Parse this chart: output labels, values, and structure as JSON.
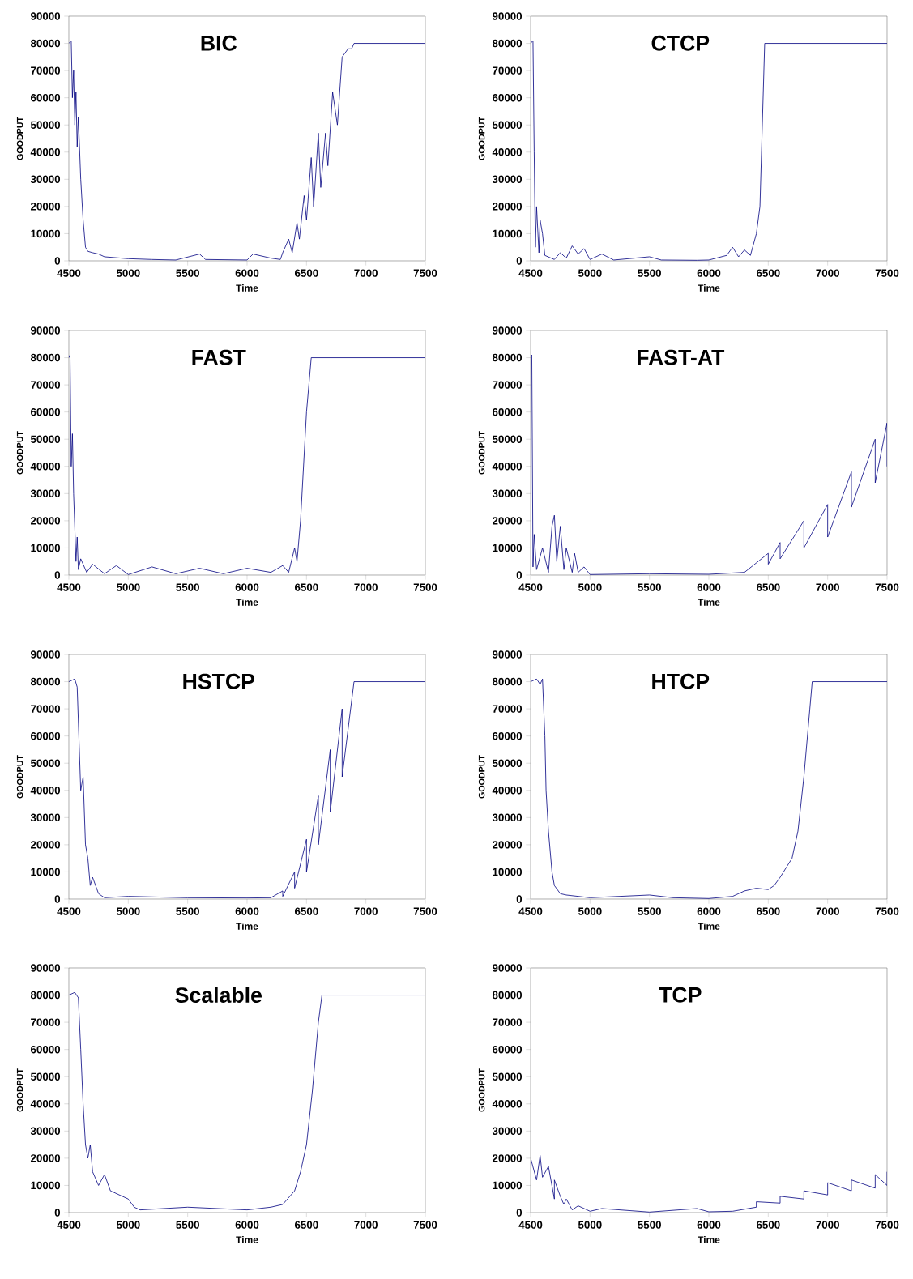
{
  "chart_data": [
    {
      "type": "line",
      "title": "BIC",
      "xlabel": "Time",
      "ylabel": "GOODPUT",
      "xlim": [
        4500,
        7500
      ],
      "ylim": [
        0,
        90000
      ],
      "xticks": [
        4500,
        5000,
        5500,
        6000,
        6500,
        7000,
        7500
      ],
      "yticks": [
        0,
        10000,
        20000,
        30000,
        40000,
        50000,
        60000,
        70000,
        80000,
        90000
      ],
      "series": [
        {
          "color": "#000080",
          "x": [
            4500,
            4520,
            4530,
            4540,
            4550,
            4560,
            4570,
            4580,
            4600,
            4620,
            4640,
            4660,
            4700,
            4750,
            4800,
            5000,
            5200,
            5400,
            5600,
            5650,
            6000,
            6050,
            6200,
            6280,
            6300,
            6350,
            6380,
            6420,
            6440,
            6480,
            6500,
            6540,
            6560,
            6600,
            6620,
            6660,
            6680,
            6720,
            6760,
            6800,
            6850,
            6880,
            6900,
            7500
          ],
          "values": [
            80000,
            81000,
            60000,
            70000,
            50000,
            62000,
            42000,
            53000,
            30000,
            15000,
            5000,
            3500,
            3000,
            2500,
            1500,
            800,
            500,
            300,
            2500,
            500,
            300,
            2500,
            1000,
            500,
            3000,
            8000,
            3000,
            14000,
            8000,
            24000,
            15000,
            38000,
            20000,
            47000,
            27000,
            47000,
            35000,
            62000,
            50000,
            75000,
            78000,
            78000,
            80000,
            80000
          ]
        }
      ]
    },
    {
      "type": "line",
      "title": "CTCP",
      "xlabel": "Time",
      "ylabel": "GOODPUT",
      "xlim": [
        4500,
        7500
      ],
      "ylim": [
        0,
        90000
      ],
      "xticks": [
        4500,
        5000,
        5500,
        6000,
        6500,
        7000,
        7500
      ],
      "yticks": [
        0,
        10000,
        20000,
        30000,
        40000,
        50000,
        60000,
        70000,
        80000,
        90000
      ],
      "series": [
        {
          "color": "#000080",
          "x": [
            4500,
            4520,
            4530,
            4540,
            4550,
            4570,
            4580,
            4600,
            4620,
            4700,
            4750,
            4800,
            4850,
            4900,
            4950,
            5000,
            5100,
            5200,
            5500,
            5600,
            5900,
            6000,
            6150,
            6200,
            6250,
            6300,
            6350,
            6400,
            6430,
            6470,
            7500
          ],
          "values": [
            80000,
            81000,
            40000,
            5000,
            20000,
            3000,
            15000,
            10000,
            2000,
            500,
            3000,
            1000,
            5500,
            2500,
            4500,
            500,
            2500,
            300,
            1500,
            300,
            200,
            300,
            2000,
            5000,
            1500,
            4000,
            2000,
            10000,
            20000,
            80000,
            80000
          ]
        }
      ]
    },
    {
      "type": "line",
      "title": "FAST",
      "xlabel": "Time",
      "ylabel": "GOODPUT",
      "xlim": [
        4500,
        7500
      ],
      "ylim": [
        0,
        90000
      ],
      "xticks": [
        4500,
        5000,
        5500,
        6000,
        6500,
        7000,
        7500
      ],
      "yticks": [
        0,
        10000,
        20000,
        30000,
        40000,
        50000,
        60000,
        70000,
        80000,
        90000
      ],
      "series": [
        {
          "color": "#000080",
          "x": [
            4500,
            4510,
            4520,
            4530,
            4540,
            4560,
            4570,
            4580,
            4600,
            4650,
            4700,
            4800,
            4900,
            5000,
            5200,
            5400,
            5600,
            5800,
            6000,
            6200,
            6300,
            6350,
            6400,
            6420,
            6450,
            6500,
            6540,
            7500
          ],
          "values": [
            80000,
            81000,
            40000,
            52000,
            30000,
            5000,
            14000,
            2000,
            6000,
            1000,
            4000,
            500,
            3500,
            200,
            3000,
            500,
            2500,
            500,
            2500,
            1000,
            3500,
            1000,
            10000,
            5000,
            20000,
            60000,
            80000,
            80000
          ]
        }
      ]
    },
    {
      "type": "line",
      "title": "FAST-AT",
      "xlabel": "Time",
      "ylabel": "GOODPUT",
      "xlim": [
        4500,
        7500
      ],
      "ylim": [
        0,
        90000
      ],
      "xticks": [
        4500,
        5000,
        5500,
        6000,
        6500,
        7000,
        7500
      ],
      "yticks": [
        0,
        10000,
        20000,
        30000,
        40000,
        50000,
        60000,
        70000,
        80000,
        90000
      ],
      "series": [
        {
          "color": "#000080",
          "x": [
            4500,
            4510,
            4520,
            4530,
            4550,
            4600,
            4650,
            4680,
            4700,
            4720,
            4750,
            4780,
            4800,
            4850,
            4870,
            4900,
            4950,
            5000,
            5500,
            6000,
            6300,
            6500,
            6500,
            6600,
            6600,
            6800,
            6800,
            7000,
            7000,
            7200,
            7200,
            7400,
            7400,
            7500,
            7500
          ],
          "values": [
            80000,
            81000,
            3000,
            15000,
            2000,
            10000,
            1000,
            18000,
            22000,
            5000,
            18000,
            2000,
            10000,
            1000,
            8000,
            1000,
            3000,
            200,
            500,
            300,
            1000,
            8000,
            4000,
            12000,
            6000,
            20000,
            10000,
            26000,
            14000,
            38000,
            25000,
            50000,
            34000,
            56000,
            40000
          ]
        }
      ]
    },
    {
      "type": "line",
      "title": "HSTCP",
      "xlabel": "Time",
      "ylabel": "GOODPUT",
      "xlim": [
        4500,
        7500
      ],
      "ylim": [
        0,
        90000
      ],
      "xticks": [
        4500,
        5000,
        5500,
        6000,
        6500,
        7000,
        7500
      ],
      "yticks": [
        0,
        10000,
        20000,
        30000,
        40000,
        50000,
        60000,
        70000,
        80000,
        90000
      ],
      "series": [
        {
          "color": "#000080",
          "x": [
            4500,
            4550,
            4570,
            4600,
            4620,
            4640,
            4660,
            4680,
            4700,
            4750,
            4800,
            5000,
            5500,
            6000,
            6200,
            6300,
            6300,
            6400,
            6400,
            6500,
            6500,
            6600,
            6600,
            6700,
            6700,
            6800,
            6800,
            6900,
            7500
          ],
          "values": [
            80000,
            81000,
            78000,
            40000,
            45000,
            20000,
            15000,
            5000,
            8000,
            2000,
            500,
            1000,
            500,
            400,
            500,
            3000,
            1000,
            10000,
            4000,
            22000,
            10000,
            38000,
            20000,
            55000,
            32000,
            70000,
            45000,
            80000,
            80000
          ]
        }
      ]
    },
    {
      "type": "line",
      "title": "HTCP",
      "xlabel": "Time",
      "ylabel": "GOODPUT",
      "xlim": [
        4500,
        7500
      ],
      "ylim": [
        0,
        90000
      ],
      "xticks": [
        4500,
        5000,
        5500,
        6000,
        6500,
        7000,
        7500
      ],
      "yticks": [
        0,
        10000,
        20000,
        30000,
        40000,
        50000,
        60000,
        70000,
        80000,
        90000
      ],
      "series": [
        {
          "color": "#000080",
          "x": [
            4500,
            4550,
            4580,
            4600,
            4620,
            4630,
            4650,
            4680,
            4700,
            4750,
            4800,
            5000,
            5500,
            5700,
            6000,
            6200,
            6300,
            6400,
            6500,
            6550,
            6600,
            6700,
            6750,
            6800,
            6850,
            6870,
            7500
          ],
          "values": [
            80000,
            81000,
            79000,
            81000,
            60000,
            40000,
            25000,
            10000,
            5000,
            2000,
            1500,
            500,
            1500,
            500,
            200,
            1000,
            3000,
            4000,
            3500,
            5000,
            8000,
            15000,
            25000,
            45000,
            70000,
            80000,
            80000
          ]
        }
      ]
    },
    {
      "type": "line",
      "title": "Scalable",
      "xlabel": "Time",
      "ylabel": "GOODPUT",
      "xlim": [
        4500,
        7500
      ],
      "ylim": [
        0,
        90000
      ],
      "xticks": [
        4500,
        5000,
        5500,
        6000,
        6500,
        7000,
        7500
      ],
      "yticks": [
        0,
        10000,
        20000,
        30000,
        40000,
        50000,
        60000,
        70000,
        80000,
        90000
      ],
      "series": [
        {
          "color": "#000080",
          "x": [
            4500,
            4550,
            4580,
            4600,
            4620,
            4640,
            4660,
            4680,
            4700,
            4750,
            4800,
            4850,
            4900,
            5000,
            5050,
            5100,
            5500,
            6000,
            6200,
            6300,
            6400,
            6450,
            6500,
            6550,
            6600,
            6630,
            7500
          ],
          "values": [
            80000,
            81000,
            79000,
            60000,
            40000,
            25000,
            20000,
            25000,
            15000,
            10000,
            14000,
            8000,
            7000,
            5000,
            2000,
            1000,
            2000,
            1000,
            2000,
            3000,
            8000,
            15000,
            25000,
            45000,
            70000,
            80000,
            80000
          ]
        }
      ]
    },
    {
      "type": "line",
      "title": "TCP",
      "xlabel": "Time",
      "ylabel": "GOODPUT",
      "xlim": [
        4500,
        7500
      ],
      "ylim": [
        0,
        90000
      ],
      "xticks": [
        4500,
        5000,
        5500,
        6000,
        6500,
        7000,
        7500
      ],
      "yticks": [
        0,
        10000,
        20000,
        30000,
        40000,
        50000,
        60000,
        70000,
        80000,
        90000
      ],
      "series": [
        {
          "color": "#000080",
          "x": [
            4500,
            4500,
            4550,
            4580,
            4600,
            4650,
            4700,
            4700,
            4750,
            4780,
            4800,
            4850,
            4900,
            5000,
            5100,
            5500,
            5900,
            6000,
            6200,
            6400,
            6400,
            6600,
            6600,
            6800,
            6800,
            7000,
            7000,
            7200,
            7200,
            7400,
            7400,
            7500,
            7500
          ],
          "values": [
            10000,
            20000,
            12000,
            21000,
            13000,
            17000,
            5000,
            12000,
            6000,
            3000,
            5000,
            1000,
            2500,
            500,
            1500,
            200,
            1500,
            300,
            500,
            2000,
            4000,
            3500,
            6000,
            5000,
            8000,
            6500,
            11000,
            8000,
            12000,
            9000,
            14000,
            10000,
            15000
          ]
        }
      ]
    }
  ]
}
